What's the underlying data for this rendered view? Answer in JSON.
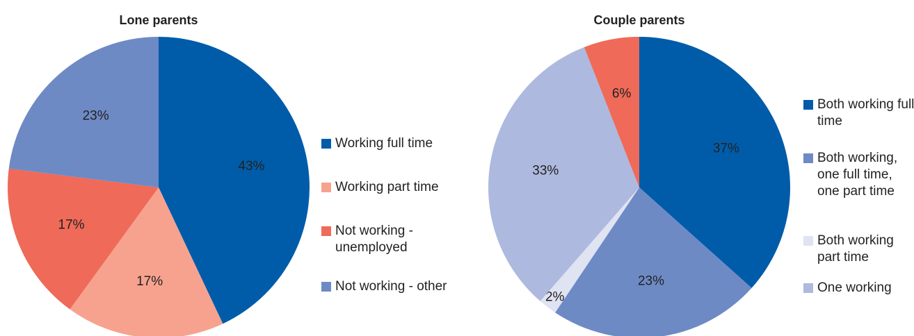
{
  "chart_data": [
    {
      "type": "pie",
      "title": "Lone parents",
      "categories": [
        "Working full time",
        "Working part time",
        "Not working - unemployed",
        "Not working - other"
      ],
      "values": [
        43,
        17,
        17,
        23
      ],
      "value_labels": [
        "43%",
        "17%",
        "17%",
        "23%"
      ],
      "colors": [
        "#005ca9",
        "#f7a28f",
        "#ef6a58",
        "#6e8ac5"
      ]
    },
    {
      "type": "pie",
      "title": "Couple parents",
      "categories": [
        "Both working full time",
        "Both working, one full time, one part time",
        "Both working part time",
        "One working",
        null
      ],
      "values": [
        37,
        23,
        2,
        33,
        6
      ],
      "value_labels": [
        "37%",
        "23%",
        "2%",
        "33%",
        "6%"
      ],
      "colors": [
        "#005ca9",
        "#6e8ac5",
        "#dfe3f2",
        "#aeb9df",
        "#ef6a58"
      ]
    }
  ]
}
